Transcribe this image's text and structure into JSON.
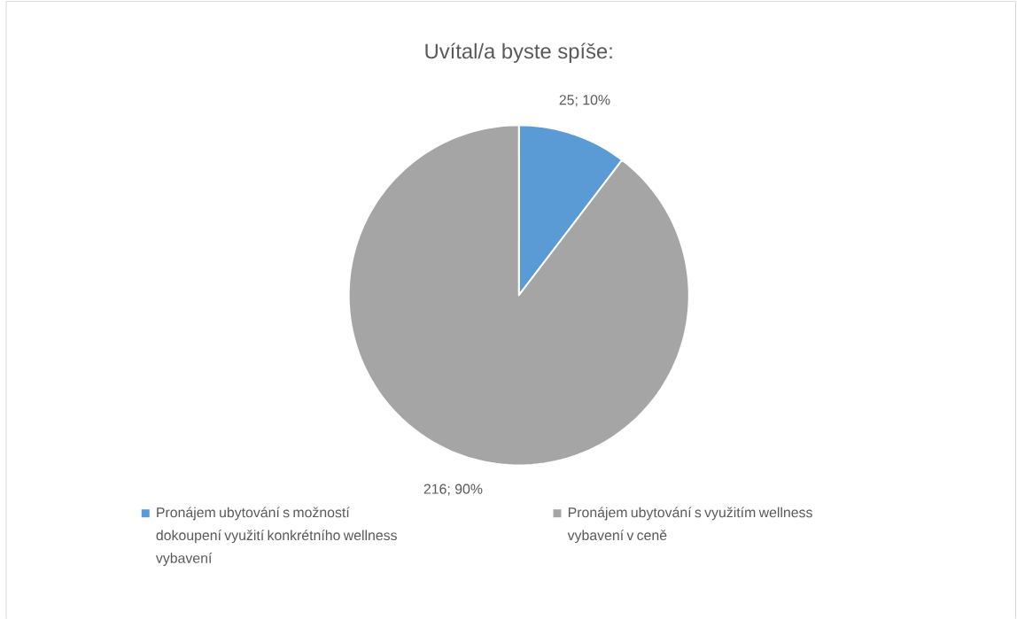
{
  "chart_data": {
    "type": "pie",
    "title": "Uvítal/a byste spíše:",
    "categories": [
      "Pronájem ubytování s možností dokoupení využití konkrétního wellness vybavení",
      "Pronájem ubytování s využitím wellness vybavení v ceně"
    ],
    "values": [
      25,
      216
    ],
    "colors": [
      "#5b9bd5",
      "#a5a5a5"
    ],
    "value_labels": [
      "25; 10%",
      "216; 90%"
    ],
    "legend": "bottom"
  }
}
